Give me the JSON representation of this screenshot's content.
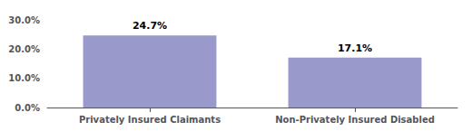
{
  "chart_data": {
    "type": "bar",
    "categories": [
      "Privately Insured Claimants",
      "Non-Privately Insured Disabled"
    ],
    "values": [
      24.7,
      17.1
    ],
    "value_labels": [
      "24.7%",
      "17.1%"
    ],
    "color": "#9999cc",
    "ylim": [
      0,
      30
    ],
    "yticks": [
      {
        "value": 0,
        "label": "0.0%"
      },
      {
        "value": 10,
        "label": "10.0%"
      },
      {
        "value": 20,
        "label": "20.0%"
      },
      {
        "value": 30,
        "label": "30.0%"
      }
    ],
    "grid": false,
    "data_labels": true
  }
}
